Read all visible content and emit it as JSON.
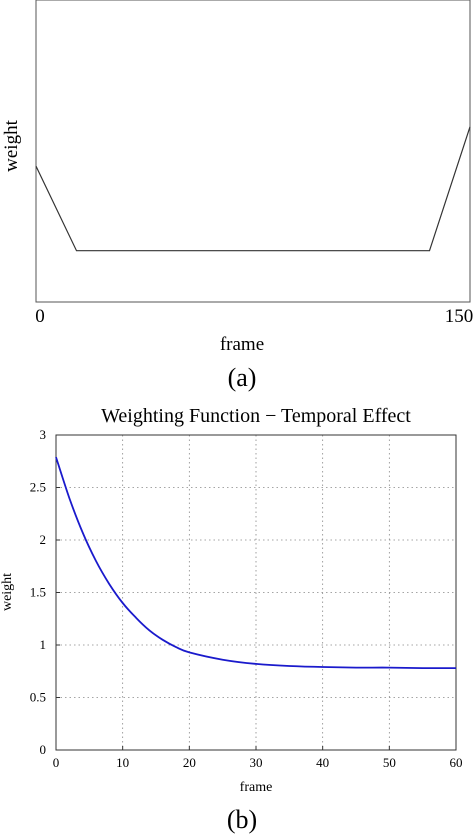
{
  "chart_data": [
    {
      "type": "line",
      "xlabel": "frame",
      "ylabel": "weight",
      "caption": "(a)",
      "x_tick_labels": [
        "0",
        "150"
      ],
      "xlim": [
        0,
        150
      ],
      "ylim": [
        0,
        1
      ],
      "series": [
        {
          "x": [
            0,
            14,
            136,
            150
          ],
          "y": [
            0.45,
            0.17,
            0.17,
            0.58
          ],
          "color": "#333333"
        }
      ]
    },
    {
      "type": "line",
      "title": "Weighting Function − Temporal Effect",
      "xlabel": "frame",
      "ylabel": "weight",
      "caption": "(b)",
      "xlim": [
        0,
        60
      ],
      "ylim": [
        0,
        3
      ],
      "xticks": [
        0,
        10,
        20,
        30,
        40,
        50,
        60
      ],
      "yticks": [
        0,
        0.5,
        1,
        1.5,
        2,
        2.5,
        3
      ],
      "x_tick_labels": [
        "0",
        "10",
        "20",
        "30",
        "40",
        "50",
        "60"
      ],
      "y_tick_labels": [
        "0",
        "0.5",
        "1",
        "1.5",
        "2",
        "2.5",
        "3"
      ],
      "grid": true,
      "series": [
        {
          "x": [
            0,
            2,
            4,
            6,
            8,
            10,
            12,
            14,
            16,
            18,
            20,
            25,
            30,
            35,
            40,
            45,
            50,
            55,
            60
          ],
          "y": [
            2.79,
            2.4,
            2.07,
            1.8,
            1.58,
            1.4,
            1.26,
            1.14,
            1.05,
            0.98,
            0.93,
            0.86,
            0.82,
            0.8,
            0.79,
            0.785,
            0.785,
            0.78,
            0.78
          ],
          "color": "#1a1acc"
        }
      ]
    }
  ]
}
